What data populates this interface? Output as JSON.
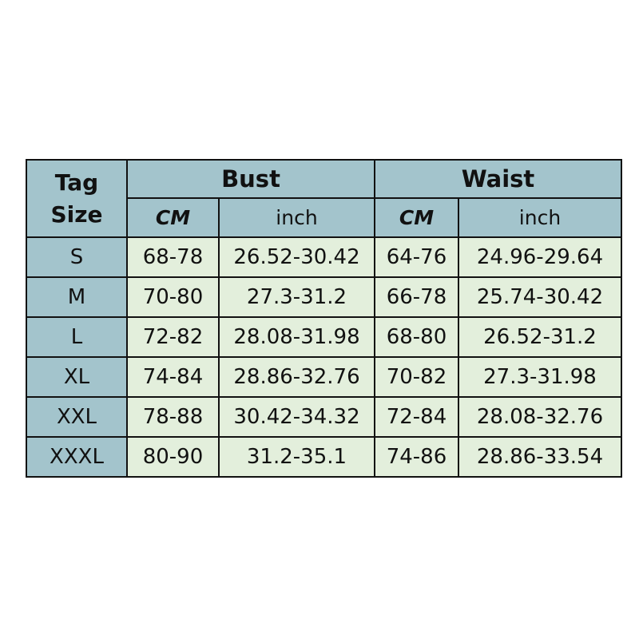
{
  "header": {
    "tag_size": "Tag Size",
    "tag_line1": "Tag",
    "tag_line2": "Size",
    "groups": [
      "Bust",
      "Waist"
    ],
    "units": [
      "CM",
      "inch",
      "CM",
      "inch"
    ]
  },
  "rows": [
    {
      "size": "S",
      "bust_cm": "68-78",
      "bust_inch": "26.52-30.42",
      "waist_cm": "64-76",
      "waist_inch": "24.96-29.64"
    },
    {
      "size": "M",
      "bust_cm": "70-80",
      "bust_inch": "27.3-31.2",
      "waist_cm": "66-78",
      "waist_inch": "25.74-30.42"
    },
    {
      "size": "L",
      "bust_cm": "72-82",
      "bust_inch": "28.08-31.98",
      "waist_cm": "68-80",
      "waist_inch": "26.52-31.2"
    },
    {
      "size": "XL",
      "bust_cm": "74-84",
      "bust_inch": "28.86-32.76",
      "waist_cm": "70-82",
      "waist_inch": "27.3-31.98"
    },
    {
      "size": "XXL",
      "bust_cm": "78-88",
      "bust_inch": "30.42-34.32",
      "waist_cm": "72-84",
      "waist_inch": "28.08-32.76"
    },
    {
      "size": "XXXL",
      "bust_cm": "80-90",
      "bust_inch": "31.2-35.1",
      "waist_cm": "74-86",
      "waist_inch": "28.86-33.54"
    }
  ],
  "colors": {
    "header": "#a3c4cc",
    "cell": "#e3efdc",
    "border": "#111111"
  }
}
